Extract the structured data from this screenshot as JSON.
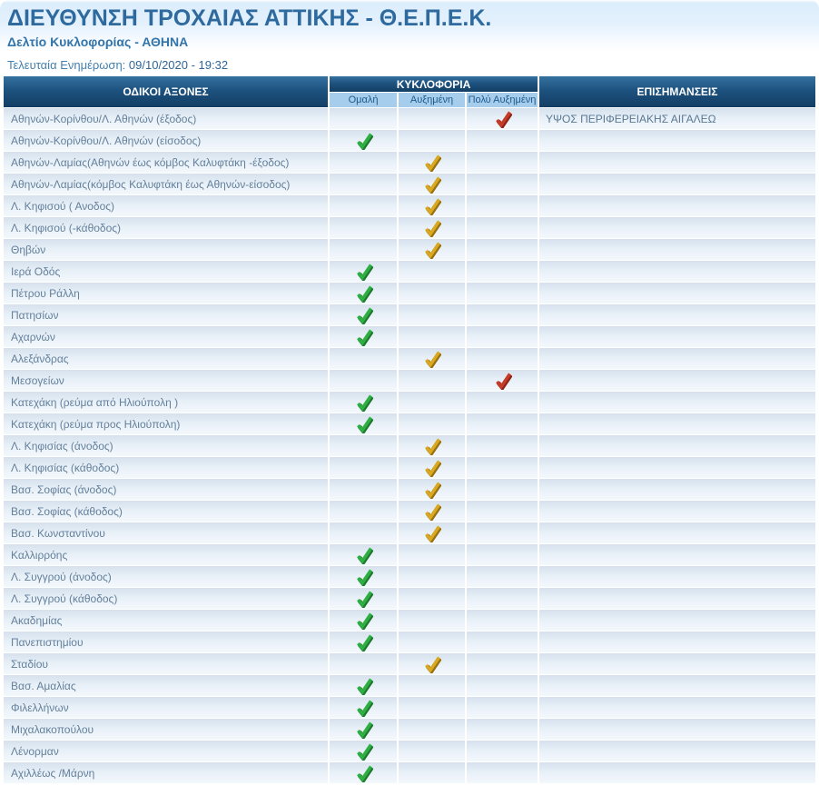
{
  "page": {
    "title": "ΔΙΕΥΘΥΝΣΗ ΤΡΟΧΑΙΑΣ ΑΤΤΙΚΗΣ - Θ.Ε.Π.Ε.Κ.",
    "subtitle": "Δελτίο Κυκλοφορίας - ΑΘΗΝΑ",
    "last_update_label": "Τελευταία Ενημέρωση:",
    "last_update_value": "09/10/2020 - 19:32"
  },
  "colors": {
    "header_dark_top": "#35719f",
    "header_dark_bottom": "#123e64",
    "subheader_bg": "#a7cdec",
    "title_blue": "#2e6a9e",
    "row_text": "#64809c"
  },
  "table": {
    "col_roads": "ΟΔΙΚΟΙ ΑΞΟΝΕΣ",
    "col_traffic": "ΚΥΚΛΟΦΟΡΙΑ",
    "col_remarks": "ΕΠΙΣΗΜΑΝΣΕΙΣ",
    "statuses": [
      {
        "key": "normal",
        "label": "Ομαλή",
        "check_color": "#2fae43",
        "check_shadow": "#1d7a2c",
        "icon": "check-icon"
      },
      {
        "key": "increased",
        "label": "Αυξημένη",
        "check_color": "#d9a81f",
        "check_shadow": "#97700d",
        "icon": "check-icon"
      },
      {
        "key": "very_increased",
        "label": "Πολύ Αυξημένη",
        "check_color": "#c63a28",
        "check_shadow": "#8c2418",
        "icon": "check-icon"
      }
    ],
    "rows": [
      {
        "name": "Αθηνών-Κορίνθου/Λ. Αθηνών (έξοδος)",
        "status": "very_increased",
        "remark": "ΥΨΟΣ ΠΕΡΙΦΕΡΕΙΑΚΗΣ ΑΙΓΑΛΕΩ"
      },
      {
        "name": "Αθηνών-Κορίνθου/Λ. Αθηνών (είσοδος)",
        "status": "normal",
        "remark": ""
      },
      {
        "name": "Αθηνών-Λαμίας(Αθηνών έως κόμβος Καλυφτάκη -έξοδος)",
        "status": "increased",
        "remark": ""
      },
      {
        "name": "Αθηνών-Λαμίας(κόμβος Καλυφτάκη έως Αθηνών-είσοδος)",
        "status": "increased",
        "remark": ""
      },
      {
        "name": "Λ. Κηφισού ( Ανοδος)",
        "status": "increased",
        "remark": ""
      },
      {
        "name": "Λ. Κηφισού (-κάθοδος)",
        "status": "increased",
        "remark": ""
      },
      {
        "name": "Θηβών",
        "status": "increased",
        "remark": ""
      },
      {
        "name": "Ιερά Οδός",
        "status": "normal",
        "remark": ""
      },
      {
        "name": "Πέτρου Ράλλη",
        "status": "normal",
        "remark": ""
      },
      {
        "name": "Πατησίων",
        "status": "normal",
        "remark": ""
      },
      {
        "name": "Αχαρνών",
        "status": "normal",
        "remark": ""
      },
      {
        "name": "Αλεξάνδρας",
        "status": "increased",
        "remark": ""
      },
      {
        "name": "Μεσογείων",
        "status": "very_increased",
        "remark": ""
      },
      {
        "name": "Κατεχάκη (ρεύμα από Ηλιούπολη )",
        "status": "normal",
        "remark": ""
      },
      {
        "name": "Κατεχάκη (ρεύμα προς Ηλιούπολη)",
        "status": "normal",
        "remark": ""
      },
      {
        "name": "Λ. Κηφισίας (άνοδος)",
        "status": "increased",
        "remark": ""
      },
      {
        "name": "Λ. Κηφισίας (κάθοδος)",
        "status": "increased",
        "remark": ""
      },
      {
        "name": "Βασ. Σοφίας (άνοδος)",
        "status": "increased",
        "remark": ""
      },
      {
        "name": "Βασ. Σοφίας (κάθοδος)",
        "status": "increased",
        "remark": ""
      },
      {
        "name": "Βασ. Κωνσταντίνου",
        "status": "increased",
        "remark": ""
      },
      {
        "name": "Καλλιρρόης",
        "status": "normal",
        "remark": ""
      },
      {
        "name": "Λ. Συγγρού (άνοδος)",
        "status": "normal",
        "remark": ""
      },
      {
        "name": "Λ. Συγγρού (κάθοδος)",
        "status": "normal",
        "remark": ""
      },
      {
        "name": "Ακαδημίας",
        "status": "normal",
        "remark": ""
      },
      {
        "name": "Πανεπιστημίου",
        "status": "normal",
        "remark": ""
      },
      {
        "name": "Σταδίου",
        "status": "increased",
        "remark": ""
      },
      {
        "name": "Βασ. Αμαλίας",
        "status": "normal",
        "remark": ""
      },
      {
        "name": "Φιλελλήνων",
        "status": "normal",
        "remark": ""
      },
      {
        "name": "Μιχαλακοπούλου",
        "status": "normal",
        "remark": ""
      },
      {
        "name": "Λένορμαν",
        "status": "normal",
        "remark": ""
      },
      {
        "name": "Αχιλλέως /Μάρνη",
        "status": "normal",
        "remark": ""
      }
    ]
  }
}
